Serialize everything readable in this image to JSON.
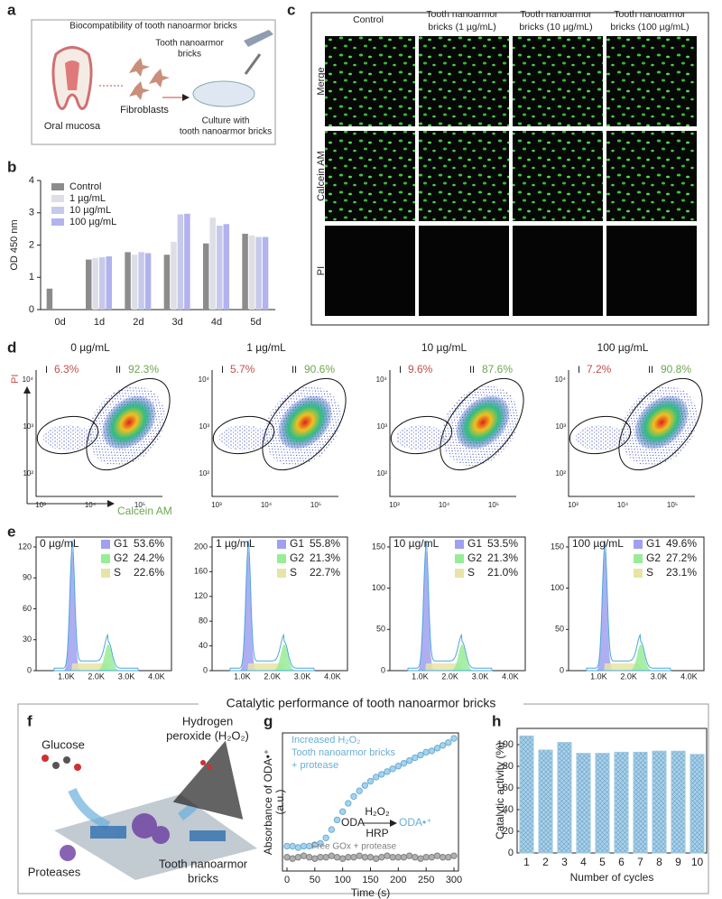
{
  "panel_labels": [
    "a",
    "b",
    "c",
    "d",
    "e",
    "f",
    "g",
    "h"
  ],
  "panel_a": {
    "title": "Biocompatibility of tooth nanoarmor bricks",
    "bricks_label": [
      "Tooth nanoarmor",
      "bricks"
    ],
    "fibroblasts": "Fibroblasts",
    "oral_mucosa": "Oral mucosa",
    "culture": [
      "Culture with",
      "tooth nanoarmor bricks"
    ]
  },
  "panel_c": {
    "columns": [
      [
        "Control"
      ],
      [
        "Tooth nanoarmor",
        "bricks (1 µg/mL)"
      ],
      [
        "Tooth nanoarmor",
        "bricks (10 µg/mL)"
      ],
      [
        "Tooth nanoarmor",
        "bricks (100 µg/mL)"
      ]
    ],
    "rows": [
      "Merge",
      "Calcein AM",
      "PI"
    ]
  },
  "panel_d": {
    "x_label": "Calcein AM",
    "y_label": "PI",
    "xticks": [
      "10³",
      "10⁴",
      "10⁵"
    ],
    "yticks": [
      "10²",
      "10³",
      "10⁴"
    ],
    "plots": [
      {
        "title": "0 µg/mL",
        "gate1": "I",
        "gate1_value": "6.3%",
        "gate2": "II",
        "gate2_value": "92.3%"
      },
      {
        "title": "1 µg/mL",
        "gate1": "I",
        "gate1_value": "5.7%",
        "gate2": "II",
        "gate2_value": "90.6%"
      },
      {
        "title": "10 µg/mL",
        "gate1": "I",
        "gate1_value": "9.6%",
        "gate2": "II",
        "gate2_value": "87.6%"
      },
      {
        "title": "100 µg/mL",
        "gate1": "I",
        "gate1_value": "7.2%",
        "gate2": "II",
        "gate2_value": "90.8%"
      }
    ]
  },
  "panel_e": {
    "xticks": [
      "1.0K",
      "2.0K",
      "3.0K",
      "4.0K"
    ],
    "plots": [
      {
        "title": "0 µg/mL",
        "yticks": [
          0,
          30,
          60,
          90,
          120
        ],
        "legend": [
          {
            "name": "G1",
            "value": "53.6%",
            "color": "#a0a0f0"
          },
          {
            "name": "G2",
            "value": "24.2%",
            "color": "#98ec98"
          },
          {
            "name": "S",
            "value": "22.6%",
            "color": "#e8e4a8"
          }
        ]
      },
      {
        "title": "1 µg/mL",
        "yticks": [
          0,
          40,
          80,
          120,
          160,
          200
        ],
        "legend": [
          {
            "name": "G1",
            "value": "55.8%",
            "color": "#a0a0f0"
          },
          {
            "name": "G2",
            "value": "21.3%",
            "color": "#98ec98"
          },
          {
            "name": "S",
            "value": "22.7%",
            "color": "#e8e4a8"
          }
        ]
      },
      {
        "title": "10 µg/mL",
        "yticks": [
          0,
          50,
          100,
          150
        ],
        "legend": [
          {
            "name": "G1",
            "value": "53.5%",
            "color": "#a0a0f0"
          },
          {
            "name": "G2",
            "value": "21.3%",
            "color": "#98ec98"
          },
          {
            "name": "S",
            "value": "21.0%",
            "color": "#e8e4a8"
          }
        ]
      },
      {
        "title": "100 µg/mL",
        "yticks": [
          0,
          50,
          100,
          150
        ],
        "legend": [
          {
            "name": "G1",
            "value": "49.6%",
            "color": "#a0a0f0"
          },
          {
            "name": "G2",
            "value": "27.2%",
            "color": "#98ec98"
          },
          {
            "name": "S",
            "value": "23.1%",
            "color": "#e8e4a8"
          }
        ]
      }
    ]
  },
  "section_title": "Catalytic performance of tooth nanoarmor bricks",
  "panel_f": {
    "glucose": "Glucose",
    "h2o2": [
      "Hydrogen",
      "peroxide (H₂O₂)"
    ],
    "proteases": "Proteases",
    "bricks": [
      "Tooth nanoarmor",
      "bricks"
    ]
  },
  "chart_data": [
    {
      "type": "bar",
      "categories": [
        "0d",
        "1d",
        "2d",
        "3d",
        "4d",
        "5d"
      ],
      "y_label": "OD 450 nm",
      "ylim": [
        0,
        4
      ],
      "yticks": [
        0,
        1,
        2,
        3,
        4
      ],
      "legend": "upper left",
      "series": [
        {
          "name": "Control",
          "color": "#8c8c8c",
          "values": [
            0.65,
            1.55,
            1.78,
            1.7,
            2.05,
            2.35
          ]
        },
        {
          "name": "1 µg/mL",
          "color": "#dedee6",
          "values": [
            null,
            1.6,
            1.7,
            2.1,
            2.85,
            2.3
          ]
        },
        {
          "name": "10 µg/mL",
          "color": "#c6c9ea",
          "values": [
            null,
            1.62,
            1.78,
            2.95,
            2.6,
            2.25
          ]
        },
        {
          "name": "100 µg/mL",
          "color": "#b2b2ee",
          "values": [
            null,
            1.65,
            1.75,
            2.97,
            2.65,
            2.25
          ]
        }
      ]
    },
    {
      "type": "line",
      "x": [
        0,
        10,
        20,
        30,
        40,
        50,
        60,
        70,
        80,
        90,
        100,
        110,
        120,
        130,
        140,
        150,
        160,
        170,
        180,
        190,
        200,
        210,
        220,
        230,
        240,
        250,
        260,
        270,
        280,
        290,
        300
      ],
      "xlim": [
        0,
        300
      ],
      "xticks": [
        0,
        50,
        100,
        150,
        200,
        250,
        300
      ],
      "ylim": [
        0,
        1
      ],
      "x_label": "Time (s)",
      "y_label": [
        "Absorbance of ODA•⁺",
        "(a.u.)"
      ],
      "annotations": {
        "increased": "Increased H₂O₂",
        "bricks": "Tooth nanoarmor bricks",
        "protease": "+ protease",
        "oda": "ODA",
        "h2o2": "H₂O₂",
        "hrp": "HRP",
        "oda_radical": "ODA•⁺",
        "free": "Free GOx + protease"
      },
      "series": [
        {
          "color": "#6aaed6",
          "values": [
            0.18,
            0.18,
            0.17,
            0.18,
            0.18,
            0.19,
            0.2,
            0.24,
            0.3,
            0.37,
            0.43,
            0.49,
            0.54,
            0.58,
            0.62,
            0.65,
            0.68,
            0.7,
            0.72,
            0.74,
            0.76,
            0.78,
            0.8,
            0.82,
            0.84,
            0.86,
            0.87,
            0.89,
            0.91,
            0.93,
            0.96
          ]
        },
        {
          "color": "#808080",
          "values": [
            0.1,
            0.09,
            0.1,
            0.11,
            0.1,
            0.09,
            0.1,
            0.1,
            0.11,
            0.1,
            0.09,
            0.1,
            0.1,
            0.11,
            0.1,
            0.1,
            0.09,
            0.1,
            0.11,
            0.1,
            0.1,
            0.1,
            0.11,
            0.1,
            0.09,
            0.1,
            0.1,
            0.11,
            0.1,
            0.1,
            0.11
          ]
        }
      ]
    },
    {
      "type": "bar",
      "categories": [
        "1",
        "2",
        "3",
        "4",
        "5",
        "6",
        "7",
        "8",
        "9",
        "10"
      ],
      "values": [
        108,
        95,
        102,
        92,
        92,
        93,
        93,
        94,
        94,
        91
      ],
      "color": "#9ecae1",
      "ylim": [
        0,
        115
      ],
      "yticks": [
        0,
        20,
        40,
        60,
        80,
        100
      ],
      "x_label": "Number of cycles",
      "y_label": "Catalytic activity (%)"
    }
  ]
}
